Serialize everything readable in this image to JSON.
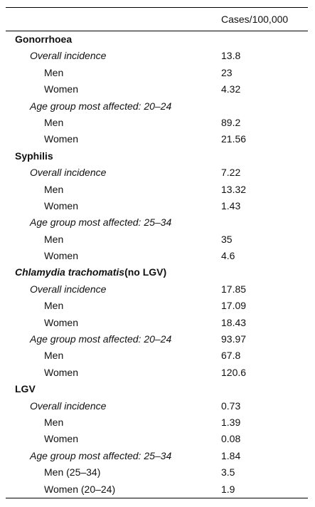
{
  "table": {
    "header": {
      "value_column": "Cases/100,000"
    },
    "sections": [
      {
        "title": "Gonorrhoea",
        "groups": [
          {
            "label": "Overall incidence",
            "value": "13.8",
            "rows": [
              {
                "label": "Men",
                "value": "23"
              },
              {
                "label": "Women",
                "value": "4.32"
              }
            ]
          },
          {
            "label": "Age group most affected: 20–24",
            "rows": [
              {
                "label": "Men",
                "value": "89.2"
              },
              {
                "label": "Women",
                "value": "21.56"
              }
            ]
          }
        ]
      },
      {
        "title": "Syphilis",
        "groups": [
          {
            "label": "Overall incidence",
            "value": "7.22",
            "rows": [
              {
                "label": "Men",
                "value": "13.32"
              },
              {
                "label": "Women",
                "value": "1.43"
              }
            ]
          },
          {
            "label": "Age group most affected: 25–34",
            "rows": [
              {
                "label": "Men",
                "value": "35"
              },
              {
                "label": "Women",
                "value": "4.6"
              }
            ]
          }
        ]
      },
      {
        "title_parts": [
          {
            "text": "Chlamydia trachomatis",
            "italic": true
          },
          {
            "text": "(no LGV)"
          }
        ],
        "groups": [
          {
            "label": "Overall incidence",
            "value": "17.85",
            "rows": [
              {
                "label": "Men",
                "value": "17.09"
              },
              {
                "label": "Women",
                "value": "18.43"
              }
            ]
          },
          {
            "label": "Age group most affected: 20–24",
            "value": "93.97",
            "rows": [
              {
                "label": "Men",
                "value": "67.8"
              },
              {
                "label": "Women",
                "value": "120.6"
              }
            ]
          }
        ]
      },
      {
        "title": "LGV",
        "groups": [
          {
            "label": "Overall incidence",
            "value": "0.73",
            "rows": [
              {
                "label": "Men",
                "value": "1.39"
              },
              {
                "label": "Women",
                "value": "0.08"
              }
            ]
          },
          {
            "label": "Age group most affected: 25–34",
            "value": "1.84",
            "rows": [
              {
                "label": "Men (25–34)",
                "value": "3.5"
              },
              {
                "label": "Women (20–24)",
                "value": "1.9"
              }
            ]
          }
        ]
      }
    ]
  }
}
